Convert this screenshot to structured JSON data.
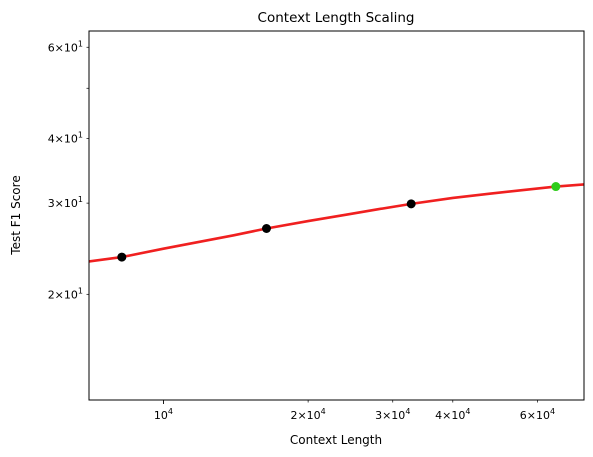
{
  "chart_data": {
    "type": "line",
    "title": "Context Length Scaling",
    "xlabel": "Context Length",
    "ylabel": "Test F1 Score",
    "x_scale": "log",
    "y_scale": "log",
    "xlim": [
      7000,
      75000
    ],
    "ylim": [
      12.5,
      64.5
    ],
    "grid": false,
    "legend": "none",
    "x_ticks_major": [
      {
        "value": 10000,
        "label": "10^4"
      }
    ],
    "x_ticks_minor": [
      {
        "value": 20000,
        "label": "2×10^4"
      },
      {
        "value": 30000,
        "label": "3×10^4"
      },
      {
        "value": 40000,
        "label": "4×10^4"
      },
      {
        "value": 60000,
        "label": "6×10^4"
      }
    ],
    "y_ticks_major": [
      {
        "value": 10,
        "label": ""
      }
    ],
    "y_ticks_minor": [
      {
        "value": 20,
        "label": "2×10^1"
      },
      {
        "value": 30,
        "label": "3×10^1"
      },
      {
        "value": 40,
        "label": "4×10^1"
      },
      {
        "value": 50,
        "label": ""
      },
      {
        "value": 60,
        "label": "6×10^1"
      }
    ],
    "series": [
      {
        "role": "observed",
        "mark": "point",
        "color": "#000000",
        "x": [
          8192,
          16384,
          32768
        ],
        "y": [
          23.6,
          26.8,
          29.9
        ]
      },
      {
        "role": "predicted",
        "mark": "point",
        "color": "#2ecc1a",
        "x": [
          65536
        ],
        "y": [
          32.3
        ]
      },
      {
        "role": "fit",
        "mark": "line",
        "color": "#f02020",
        "x": [
          7000,
          8192,
          10000,
          12000,
          14000,
          16384,
          20000,
          24000,
          28000,
          32768,
          40000,
          48000,
          56000,
          65536,
          75000
        ],
        "y": [
          23.15,
          23.6,
          24.5,
          25.3,
          26.0,
          26.8,
          27.7,
          28.5,
          29.2,
          29.9,
          30.7,
          31.3,
          31.8,
          32.3,
          32.6
        ]
      }
    ]
  }
}
